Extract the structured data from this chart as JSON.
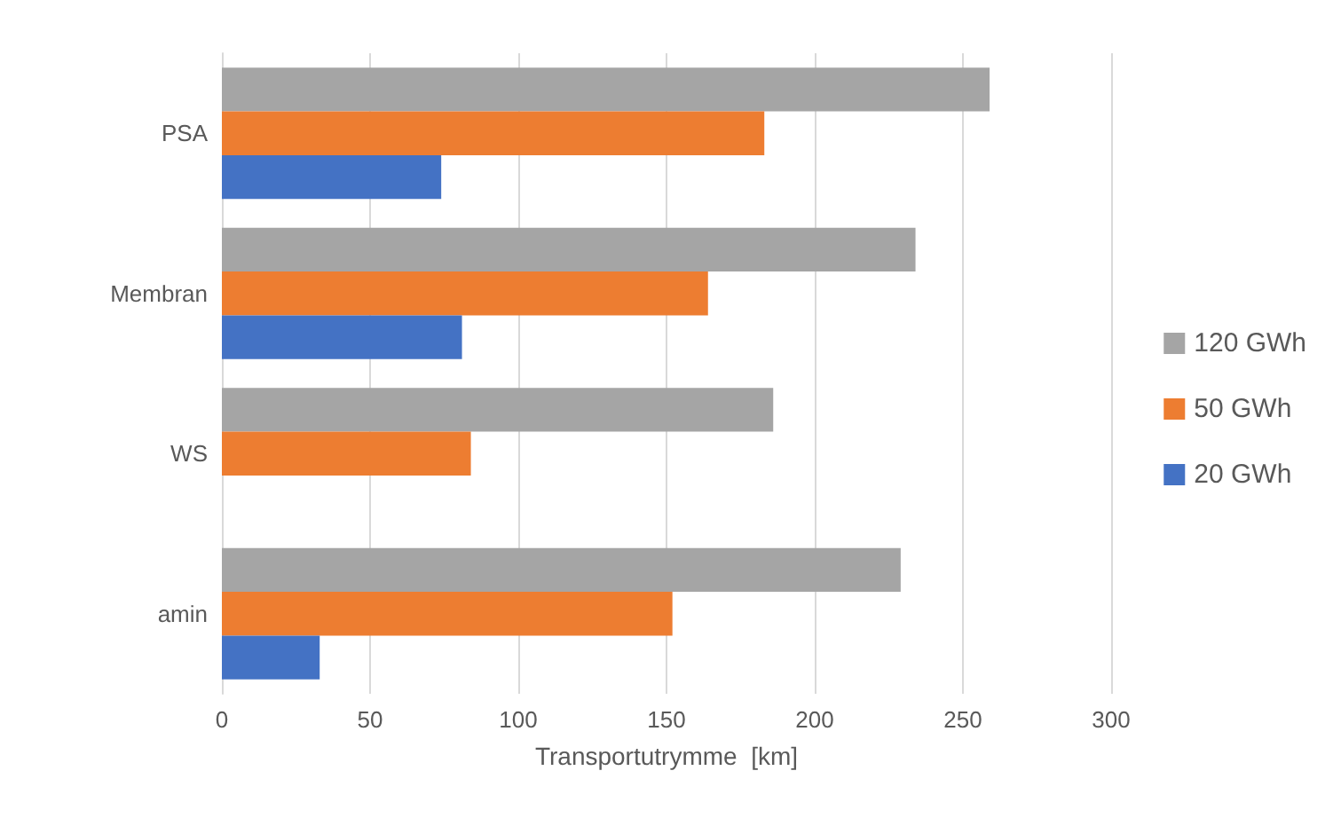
{
  "chart_data": {
    "type": "bar",
    "orientation": "horizontal",
    "xlabel": "Transportutrymme  [km]",
    "categories": [
      "PSA",
      "Membran",
      "WS",
      "amin"
    ],
    "series": [
      {
        "name": "120 GWh",
        "color": "#a5a5a5",
        "values": [
          259,
          234,
          186,
          229
        ]
      },
      {
        "name": "50 GWh",
        "color": "#ed7d31",
        "values": [
          183,
          164,
          84,
          152
        ]
      },
      {
        "name": "20 GWh",
        "color": "#4472c4",
        "values": [
          74,
          81,
          null,
          33
        ]
      }
    ],
    "xlim": [
      0,
      300
    ],
    "xticks": [
      0,
      50,
      100,
      150,
      200,
      250,
      300
    ],
    "grid": "x",
    "legend": "right"
  }
}
